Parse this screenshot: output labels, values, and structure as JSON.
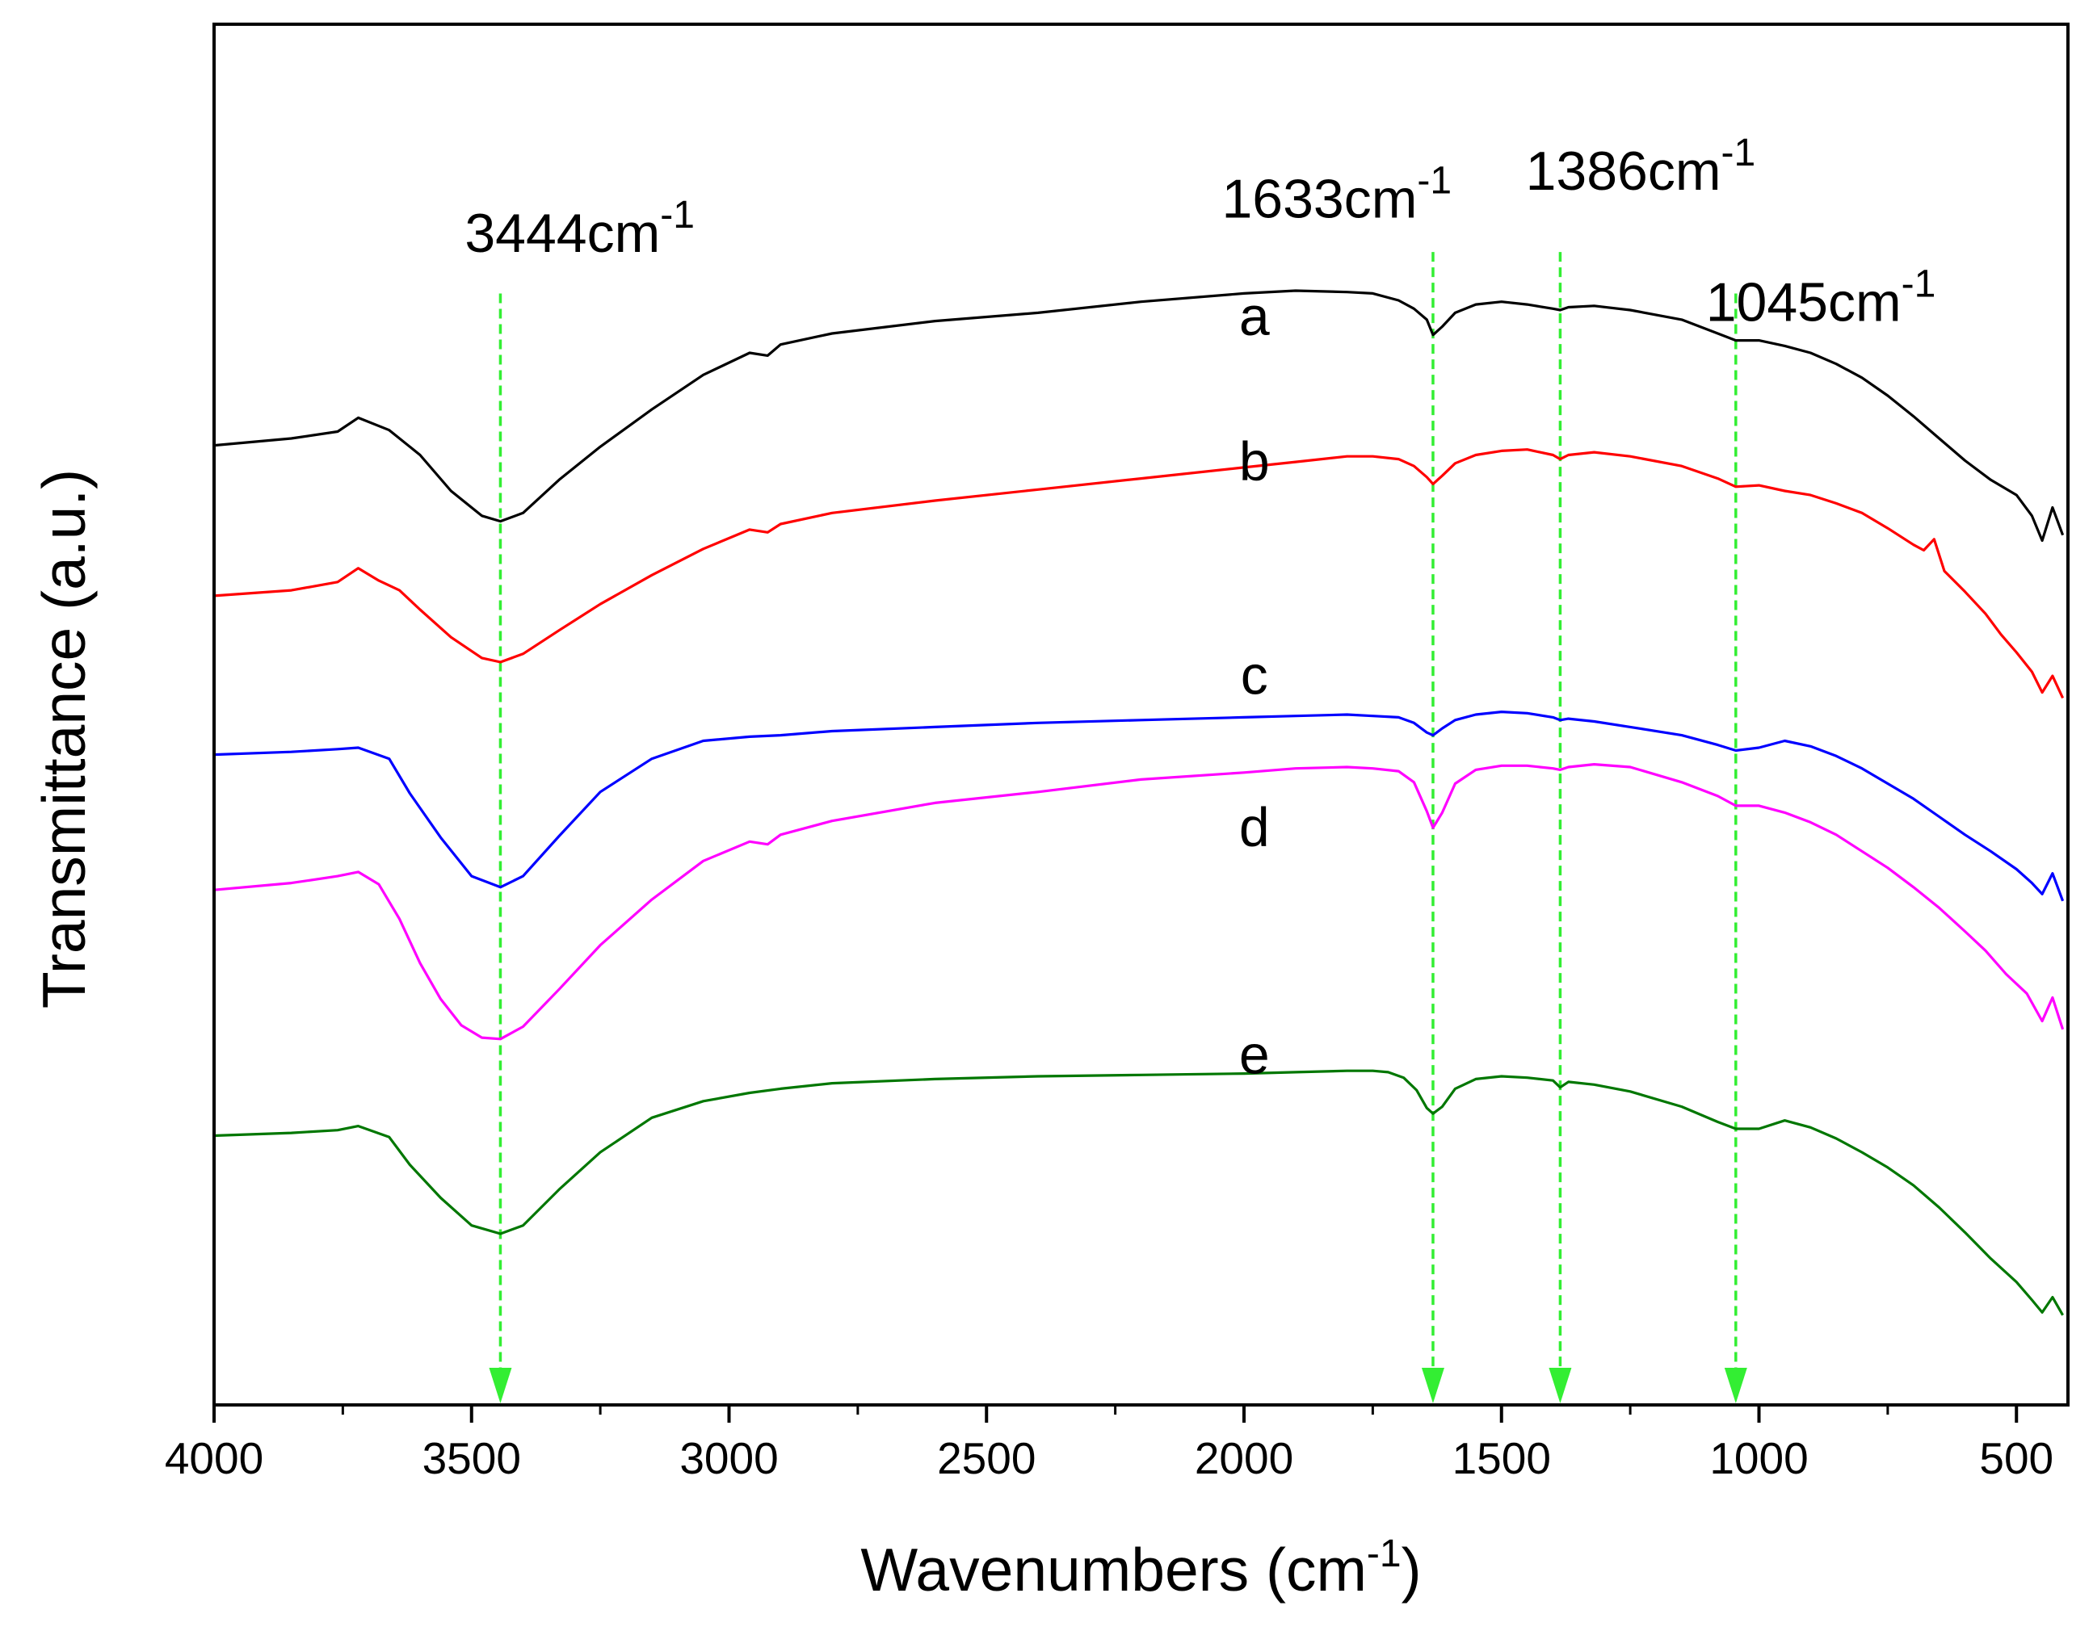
{
  "chart_data": {
    "type": "line",
    "title": "",
    "xlabel": "Wavenumbers (cm",
    "xlabel_sup": "-1",
    "xlabel_suffix": ")",
    "ylabel": "Transmittance (a.u.)",
    "xlim": [
      4000,
      400
    ],
    "x_reversed": true,
    "ylim": [
      0,
      100
    ],
    "y_ticks_shown": false,
    "grid": false,
    "x_ticks": [
      {
        "value": 4000,
        "label": "4000"
      },
      {
        "value": 3500,
        "label": "3500"
      },
      {
        "value": 3000,
        "label": "3000"
      },
      {
        "value": 2500,
        "label": "2500"
      },
      {
        "value": 2000,
        "label": "2000"
      },
      {
        "value": 1500,
        "label": "1500"
      },
      {
        "value": 1000,
        "label": "1000"
      },
      {
        "value": 500,
        "label": "500"
      }
    ],
    "x_minor_ticks": [
      3750,
      3250,
      2750,
      2250,
      1750,
      1250,
      750
    ],
    "peaks": [
      {
        "x": 3444,
        "label": "3444cm",
        "sup": "-1",
        "label_x": 3290,
        "label_y": 83.5,
        "line_top": 80.5
      },
      {
        "x": 1633,
        "label": "1633cm",
        "sup": "-1",
        "label_x": 1820,
        "label_y": 86.0,
        "line_top": 83.5
      },
      {
        "x": 1386,
        "label": "1386cm",
        "sup": "-1",
        "label_x": 1230,
        "label_y": 88.0,
        "line_top": 83.5
      },
      {
        "x": 1045,
        "label": "1045cm",
        "sup": "-1",
        "label_x": 880,
        "label_y": 78.5,
        "line_top": 80.5
      }
    ],
    "marker_color": "#33ee33",
    "series": [
      {
        "name": "a",
        "color": "#000000",
        "label_x": 1980,
        "label_y": 77.5,
        "x": [
          4000,
          3850,
          3760,
          3720,
          3660,
          3600,
          3540,
          3480,
          3444,
          3400,
          3330,
          3250,
          3150,
          3050,
          2960,
          2925,
          2900,
          2800,
          2600,
          2400,
          2200,
          2000,
          1900,
          1800,
          1750,
          1700,
          1670,
          1645,
          1633,
          1615,
          1590,
          1550,
          1500,
          1450,
          1400,
          1386,
          1370,
          1320,
          1250,
          1150,
          1080,
          1045,
          1000,
          950,
          900,
          850,
          800,
          750,
          700,
          650,
          600,
          550,
          500,
          470,
          450,
          430,
          410
        ],
        "y": [
          69.5,
          70.0,
          70.5,
          71.5,
          70.6,
          68.8,
          66.2,
          64.4,
          64.0,
          64.6,
          67.0,
          69.4,
          72.1,
          74.6,
          76.2,
          76.0,
          76.8,
          77.6,
          78.5,
          79.1,
          79.9,
          80.5,
          80.7,
          80.6,
          80.5,
          80.0,
          79.4,
          78.6,
          77.5,
          78.1,
          79.1,
          79.7,
          79.9,
          79.7,
          79.4,
          79.3,
          79.5,
          79.6,
          79.3,
          78.6,
          77.6,
          77.1,
          77.1,
          76.7,
          76.2,
          75.4,
          74.4,
          73.1,
          71.6,
          70.0,
          68.4,
          67.0,
          65.9,
          64.4,
          62.6,
          65.0,
          63.0
        ]
      },
      {
        "name": "b",
        "color": "#ff0000",
        "label_x": 1980,
        "label_y": 67.0,
        "x": [
          4000,
          3850,
          3760,
          3720,
          3680,
          3640,
          3600,
          3540,
          3480,
          3444,
          3400,
          3330,
          3250,
          3150,
          3050,
          2960,
          2925,
          2900,
          2800,
          2600,
          2400,
          2200,
          2000,
          1900,
          1800,
          1750,
          1700,
          1670,
          1645,
          1633,
          1615,
          1590,
          1550,
          1500,
          1450,
          1400,
          1386,
          1370,
          1320,
          1250,
          1150,
          1080,
          1045,
          1000,
          950,
          900,
          850,
          800,
          750,
          700,
          680,
          660,
          640,
          600,
          560,
          530,
          500,
          470,
          450,
          430,
          410
        ],
        "y": [
          58.6,
          59.0,
          59.6,
          60.6,
          59.7,
          59.0,
          57.6,
          55.6,
          54.1,
          53.8,
          54.4,
          56.1,
          58.0,
          60.1,
          62.0,
          63.4,
          63.2,
          63.8,
          64.6,
          65.5,
          66.3,
          67.1,
          67.9,
          68.3,
          68.7,
          68.7,
          68.5,
          68.0,
          67.2,
          66.7,
          67.3,
          68.2,
          68.8,
          69.1,
          69.2,
          68.8,
          68.5,
          68.8,
          69.0,
          68.7,
          68.0,
          67.1,
          66.5,
          66.6,
          66.2,
          65.9,
          65.3,
          64.6,
          63.5,
          62.3,
          61.9,
          62.7,
          60.4,
          58.9,
          57.3,
          55.8,
          54.5,
          53.1,
          51.6,
          52.8,
          51.2
        ]
      },
      {
        "name": "c",
        "color": "#0000ff",
        "label_x": 1980,
        "label_y": 51.5,
        "x": [
          4000,
          3850,
          3760,
          3720,
          3660,
          3620,
          3560,
          3500,
          3444,
          3400,
          3330,
          3250,
          3150,
          3050,
          2960,
          2900,
          2800,
          2600,
          2400,
          2200,
          2000,
          1900,
          1800,
          1750,
          1700,
          1670,
          1645,
          1633,
          1615,
          1590,
          1550,
          1500,
          1450,
          1400,
          1386,
          1370,
          1320,
          1250,
          1150,
          1080,
          1045,
          1000,
          950,
          900,
          850,
          800,
          750,
          700,
          650,
          600,
          550,
          500,
          470,
          450,
          430,
          410
        ],
        "y": [
          47.1,
          47.3,
          47.5,
          47.6,
          46.8,
          44.3,
          41.1,
          38.3,
          37.5,
          38.3,
          41.2,
          44.4,
          46.8,
          48.1,
          48.4,
          48.5,
          48.8,
          49.1,
          49.4,
          49.6,
          49.8,
          49.9,
          50.0,
          49.9,
          49.8,
          49.4,
          48.7,
          48.5,
          49.0,
          49.6,
          50.0,
          50.2,
          50.1,
          49.8,
          49.6,
          49.7,
          49.5,
          49.1,
          48.5,
          47.8,
          47.4,
          47.6,
          48.1,
          47.7,
          47.0,
          46.1,
          45.0,
          43.9,
          42.6,
          41.3,
          40.1,
          38.8,
          37.8,
          37.0,
          38.5,
          36.5
        ]
      },
      {
        "name": "d",
        "color": "#ff00ff",
        "label_x": 1980,
        "label_y": 40.5,
        "x": [
          4000,
          3850,
          3760,
          3720,
          3680,
          3640,
          3600,
          3560,
          3520,
          3480,
          3444,
          3400,
          3330,
          3250,
          3150,
          3050,
          2960,
          2925,
          2900,
          2800,
          2600,
          2400,
          2200,
          2000,
          1900,
          1800,
          1750,
          1700,
          1670,
          1645,
          1633,
          1615,
          1590,
          1550,
          1500,
          1450,
          1400,
          1386,
          1370,
          1320,
          1250,
          1150,
          1080,
          1045,
          1000,
          950,
          900,
          850,
          800,
          750,
          700,
          650,
          600,
          560,
          520,
          480,
          450,
          430,
          410
        ],
        "y": [
          37.3,
          37.8,
          38.3,
          38.6,
          37.7,
          35.2,
          32.0,
          29.4,
          27.5,
          26.6,
          26.5,
          27.4,
          30.1,
          33.3,
          36.6,
          39.4,
          40.8,
          40.6,
          41.3,
          42.3,
          43.6,
          44.4,
          45.3,
          45.8,
          46.1,
          46.2,
          46.1,
          45.9,
          45.1,
          43.0,
          41.8,
          42.9,
          45.0,
          46.0,
          46.3,
          46.3,
          46.1,
          46.0,
          46.2,
          46.4,
          46.2,
          45.1,
          44.1,
          43.4,
          43.4,
          42.9,
          42.2,
          41.3,
          40.1,
          38.9,
          37.5,
          36.0,
          34.3,
          32.9,
          31.2,
          29.8,
          27.8,
          29.5,
          27.2
        ]
      },
      {
        "name": "e",
        "color": "#007700",
        "label_x": 1980,
        "label_y": 24.0,
        "x": [
          4000,
          3850,
          3760,
          3720,
          3660,
          3620,
          3560,
          3500,
          3444,
          3400,
          3330,
          3250,
          3150,
          3050,
          2960,
          2900,
          2800,
          2600,
          2400,
          2200,
          2000,
          1900,
          1800,
          1750,
          1720,
          1690,
          1665,
          1645,
          1633,
          1615,
          1590,
          1550,
          1500,
          1450,
          1400,
          1386,
          1370,
          1320,
          1250,
          1150,
          1080,
          1045,
          1000,
          950,
          900,
          850,
          800,
          750,
          700,
          650,
          600,
          550,
          500,
          470,
          450,
          430,
          410
        ],
        "y": [
          19.5,
          19.7,
          19.9,
          20.2,
          19.4,
          17.4,
          15.0,
          13.0,
          12.4,
          13.0,
          15.6,
          18.3,
          20.8,
          22.0,
          22.6,
          22.9,
          23.3,
          23.6,
          23.8,
          23.9,
          24.0,
          24.1,
          24.2,
          24.2,
          24.1,
          23.7,
          22.8,
          21.5,
          21.1,
          21.6,
          22.9,
          23.6,
          23.8,
          23.7,
          23.5,
          23.0,
          23.4,
          23.2,
          22.7,
          21.6,
          20.5,
          20.0,
          20.0,
          20.6,
          20.1,
          19.3,
          18.3,
          17.2,
          15.9,
          14.3,
          12.5,
          10.6,
          8.9,
          7.6,
          6.7,
          7.8,
          6.5
        ]
      }
    ]
  }
}
